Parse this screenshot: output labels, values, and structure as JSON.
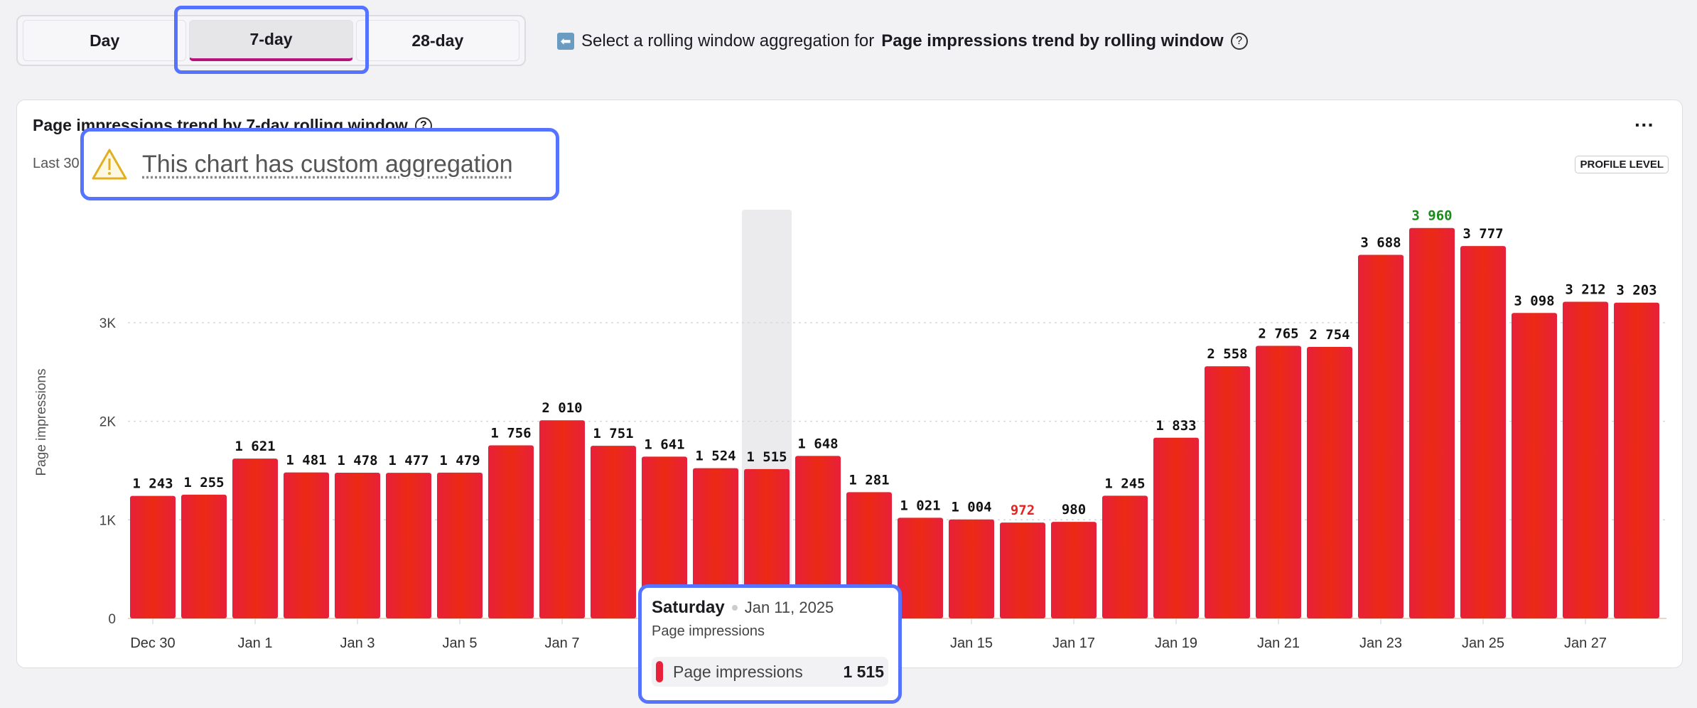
{
  "toggle": {
    "options": [
      "Day",
      "7-day",
      "28-day"
    ],
    "selected": "7-day"
  },
  "helper": {
    "prefix": "Select a rolling window aggregation for",
    "bold": "Page impressions trend by rolling window",
    "arrow_icon": "arrow-left-icon"
  },
  "card": {
    "title": "Page impressions trend by 7-day rolling window",
    "subtitle": "Last 30",
    "badge": "PROFILE LEVEL",
    "more": "···"
  },
  "notice": {
    "text": "This chart has custom aggregation",
    "icon": "warning-icon"
  },
  "tooltip": {
    "day": "Saturday",
    "date": "Jan 11, 2025",
    "subtitle": "Page impressions",
    "series": "Page impressions",
    "value": "1 515"
  },
  "chart_data": {
    "type": "bar",
    "ylabel": "Page impressions",
    "ylim": [
      0,
      4000
    ],
    "yticks": [
      {
        "v": 0,
        "l": "0"
      },
      {
        "v": 1000,
        "l": "1K"
      },
      {
        "v": 2000,
        "l": "2K"
      },
      {
        "v": 3000,
        "l": "3K"
      }
    ],
    "grid": true,
    "categories": [
      "Dec 30",
      "Dec 31",
      "Jan 1",
      "Jan 2",
      "Jan 3",
      "Jan 4",
      "Jan 5",
      "Jan 6",
      "Jan 7",
      "Jan 8",
      "Jan 9",
      "Jan 10",
      "Jan 11",
      "Jan 12",
      "Jan 13",
      "Jan 14",
      "Jan 15",
      "Jan 16",
      "Jan 17",
      "Jan 18",
      "Jan 19",
      "Jan 20",
      "Jan 21",
      "Jan 22",
      "Jan 23",
      "Jan 24",
      "Jan 25",
      "Jan 26",
      "Jan 27",
      "Jan 28"
    ],
    "xticks": [
      "Dec 30",
      "Jan 1",
      "Jan 3",
      "Jan 5",
      "Jan 7",
      "Jan 9",
      "Jan 11",
      "Jan 13",
      "Jan 15",
      "Jan 17",
      "Jan 19",
      "Jan 21",
      "Jan 23",
      "Jan 25",
      "Jan 27"
    ],
    "values": [
      1243,
      1255,
      1621,
      1481,
      1478,
      1477,
      1479,
      1756,
      2010,
      1751,
      1641,
      1524,
      1515,
      1648,
      1281,
      1021,
      1004,
      972,
      980,
      1245,
      1833,
      2558,
      2765,
      2754,
      3688,
      3960,
      3777,
      3098,
      3212,
      3203
    ],
    "labels": [
      "1 243",
      "1 255",
      "1 621",
      "1 481",
      "1 478",
      "1 477",
      "1 479",
      "1 756",
      "2 010",
      "1 751",
      "1 641",
      "1 524",
      "1 515",
      "1 648",
      "1 281",
      "1 021",
      "1 004",
      "972",
      "980",
      "1 245",
      "1 833",
      "2 558",
      "2 765",
      "2 754",
      "3 688",
      "3 960",
      "3 777",
      "3 098",
      "3 212",
      "3 203"
    ],
    "highlighted": "Jan 11",
    "colors": {
      "bar": "#e8231e",
      "max_label": "#1a8a1a",
      "min_label": "#e8231e",
      "label": "#111111",
      "hover": "#ebebed"
    }
  }
}
